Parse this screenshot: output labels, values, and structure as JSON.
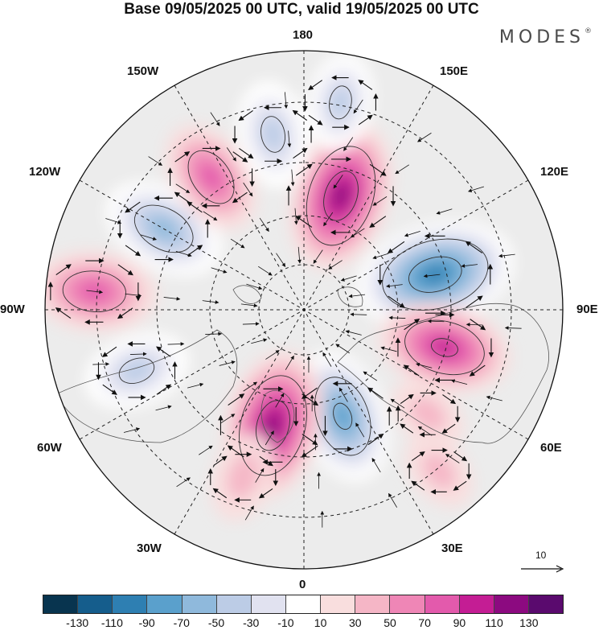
{
  "title": "Base 09/05/2025 00 UTC, valid 19/05/2025 00 UTC",
  "logo": {
    "text": "MODES",
    "mark": "®"
  },
  "longitude_labels": {
    "top": "180",
    "bottom": "0",
    "left": "90W",
    "right": "90E",
    "upper_left_1": "150W",
    "upper_left_2": "120W",
    "upper_right_1": "150E",
    "upper_right_2": "120E",
    "lower_left_1": "60W",
    "lower_left_2": "30W",
    "lower_right_1": "60E",
    "lower_right_2": "30E"
  },
  "vector_scale": {
    "label": "10"
  },
  "colorbar": {
    "colors": [
      "#08344f",
      "#155d8c",
      "#2e7fb2",
      "#5aa0cc",
      "#8fb9dc",
      "#bccce6",
      "#e1e2f0",
      "#ffffff",
      "#f9dede",
      "#f5b6c6",
      "#ef86b6",
      "#e35aac",
      "#c41d94",
      "#8c0a80",
      "#5a0a6e"
    ],
    "ticks": [
      "-130",
      "-110",
      "-90",
      "-70",
      "-50",
      "-30",
      "-10",
      "10",
      "30",
      "50",
      "70",
      "90",
      "110",
      "130"
    ]
  },
  "anomaly_centres": [
    {
      "lon_deg": 162,
      "lat_deg": 53,
      "value": 100
    },
    {
      "lon_deg": 105,
      "lat_deg": 48,
      "value": -110
    },
    {
      "lon_deg": 75,
      "lat_deg": 45,
      "value": 80
    },
    {
      "lon_deg": 20,
      "lat_deg": 55,
      "value": -80
    },
    {
      "lon_deg": -15,
      "lat_deg": 53,
      "value": 100
    },
    {
      "lon_deg": -70,
      "lat_deg": 35,
      "value": -50
    },
    {
      "lon_deg": -95,
      "lat_deg": 25,
      "value": 70
    },
    {
      "lon_deg": -120,
      "lat_deg": 40,
      "value": -70
    },
    {
      "lon_deg": -145,
      "lat_deg": 40,
      "value": 60
    },
    {
      "lon_deg": 170,
      "lat_deg": 25,
      "value": -40
    },
    {
      "lon_deg": -170,
      "lat_deg": 35,
      "value": -50
    },
    {
      "lon_deg": -20,
      "lat_deg": 35,
      "value": 30
    },
    {
      "lon_deg": 40,
      "lat_deg": 25,
      "value": 20
    },
    {
      "lon_deg": 50,
      "lat_deg": 40,
      "value": 20
    }
  ]
}
